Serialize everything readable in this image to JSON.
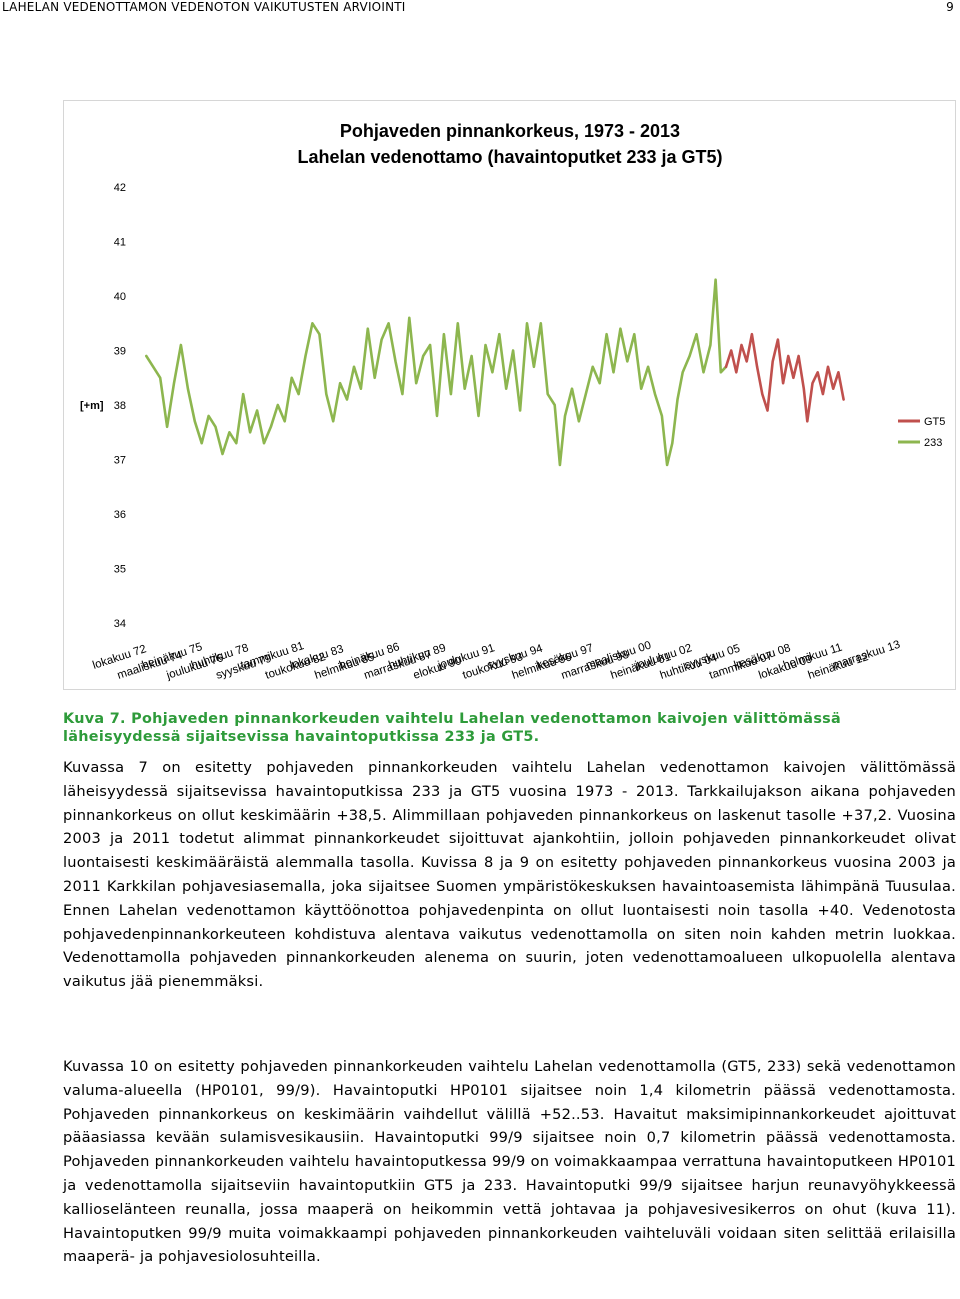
{
  "header": {
    "title": "LAHELAN VEDENOTTAMON VEDENOTON VAIKUTUSTEN ARVIOINTI",
    "page": "9"
  },
  "figure": {
    "caption": "Kuva 7. Pohjaveden pinnankorkeuden vaihtelu Lahelan vedenottamon kaivojen välittömässä läheisyydessä sijaitsevissa havaintoputkissa 233 ja GT5."
  },
  "chart_data": {
    "type": "line",
    "title": "Pohjaveden pinnankorkeus, 1973 - 2013",
    "subtitle": "Lahelan vedenottamo (havaintoputket 233 ja GT5)",
    "ylabel": "[+m]",
    "xlabel": "",
    "ylim": [
      34,
      42
    ],
    "yticks": [
      34,
      35,
      36,
      37,
      38,
      39,
      40,
      41,
      42
    ],
    "grid": false,
    "legend_position": "right",
    "categories": [
      "lokakuu 72",
      "maaliskuu 74",
      "heinäkuu 75",
      "joulukuu 76",
      "huhtikuu 78",
      "syyskuu 79",
      "tammikuu 81",
      "toukokuu 82",
      "lokakuu 83",
      "helmikuu 85",
      "heinäkuu 86",
      "marraskuu 87",
      "huhtikuu 89",
      "elokuu 90",
      "joulukuu 91",
      "toukokuu 93",
      "syyskuu 94",
      "helmikuu 96",
      "kesäkuu 97",
      "marraskuu 98",
      "maaliskuu 00",
      "heinäkuu 01",
      "joulukuu 02",
      "huhtikuu 04",
      "syyskuu 05",
      "tammikuu 07",
      "kesäkuu 08",
      "lokakuu 09",
      "helmikuu 11",
      "heinäkuu 12",
      "marraskuu 13"
    ],
    "series": [
      {
        "name": "233",
        "color": "#8db64f",
        "points": [
          [
            1973.0,
            38.9
          ],
          [
            1973.4,
            38.7
          ],
          [
            1973.8,
            38.5
          ],
          [
            1974.2,
            37.6
          ],
          [
            1974.6,
            38.4
          ],
          [
            1975.0,
            39.1
          ],
          [
            1975.4,
            38.3
          ],
          [
            1975.8,
            37.7
          ],
          [
            1976.2,
            37.3
          ],
          [
            1976.6,
            37.8
          ],
          [
            1977.0,
            37.6
          ],
          [
            1977.4,
            37.1
          ],
          [
            1977.8,
            37.5
          ],
          [
            1978.2,
            37.3
          ],
          [
            1978.6,
            38.2
          ],
          [
            1979.0,
            37.5
          ],
          [
            1979.4,
            37.9
          ],
          [
            1979.8,
            37.3
          ],
          [
            1980.2,
            37.6
          ],
          [
            1980.6,
            38.0
          ],
          [
            1981.0,
            37.7
          ],
          [
            1981.4,
            38.5
          ],
          [
            1981.8,
            38.2
          ],
          [
            1982.2,
            38.9
          ],
          [
            1982.6,
            39.5
          ],
          [
            1983.0,
            39.3
          ],
          [
            1983.4,
            38.2
          ],
          [
            1983.8,
            37.7
          ],
          [
            1984.2,
            38.4
          ],
          [
            1984.6,
            38.1
          ],
          [
            1985.0,
            38.7
          ],
          [
            1985.4,
            38.3
          ],
          [
            1985.8,
            39.4
          ],
          [
            1986.2,
            38.5
          ],
          [
            1986.6,
            39.2
          ],
          [
            1987.0,
            39.5
          ],
          [
            1987.4,
            38.8
          ],
          [
            1987.8,
            38.2
          ],
          [
            1988.2,
            39.6
          ],
          [
            1988.6,
            38.4
          ],
          [
            1989.0,
            38.9
          ],
          [
            1989.4,
            39.1
          ],
          [
            1989.8,
            37.8
          ],
          [
            1990.2,
            39.3
          ],
          [
            1990.6,
            38.2
          ],
          [
            1991.0,
            39.5
          ],
          [
            1991.4,
            38.3
          ],
          [
            1991.8,
            38.9
          ],
          [
            1992.2,
            37.8
          ],
          [
            1992.6,
            39.1
          ],
          [
            1993.0,
            38.6
          ],
          [
            1993.4,
            39.3
          ],
          [
            1993.8,
            38.3
          ],
          [
            1994.2,
            39.0
          ],
          [
            1994.6,
            37.9
          ],
          [
            1995.0,
            39.5
          ],
          [
            1995.4,
            38.7
          ],
          [
            1995.8,
            39.5
          ],
          [
            1996.2,
            38.2
          ],
          [
            1996.6,
            38.0
          ],
          [
            1996.9,
            36.9
          ],
          [
            1997.2,
            37.8
          ],
          [
            1997.6,
            38.3
          ],
          [
            1998.0,
            37.7
          ],
          [
            1998.4,
            38.2
          ],
          [
            1998.8,
            38.7
          ],
          [
            1999.2,
            38.4
          ],
          [
            1999.6,
            39.3
          ],
          [
            2000.0,
            38.6
          ],
          [
            2000.4,
            39.4
          ],
          [
            2000.8,
            38.8
          ],
          [
            2001.2,
            39.3
          ],
          [
            2001.6,
            38.3
          ],
          [
            2002.0,
            38.7
          ],
          [
            2002.4,
            38.2
          ],
          [
            2002.8,
            37.8
          ],
          [
            2003.1,
            36.9
          ],
          [
            2003.4,
            37.3
          ],
          [
            2003.7,
            38.1
          ],
          [
            2004.0,
            38.6
          ],
          [
            2004.4,
            38.9
          ],
          [
            2004.8,
            39.3
          ],
          [
            2005.2,
            38.6
          ],
          [
            2005.6,
            39.1
          ],
          [
            2005.9,
            40.3
          ],
          [
            2006.2,
            38.6
          ],
          [
            2006.5,
            38.7
          ]
        ]
      },
      {
        "name": "GT5",
        "color": "#c0504d",
        "points": [
          [
            2006.5,
            38.7
          ],
          [
            2006.8,
            39.0
          ],
          [
            2007.1,
            38.6
          ],
          [
            2007.4,
            39.1
          ],
          [
            2007.7,
            38.8
          ],
          [
            2008.0,
            39.3
          ],
          [
            2008.3,
            38.7
          ],
          [
            2008.6,
            38.2
          ],
          [
            2008.9,
            37.9
          ],
          [
            2009.2,
            38.8
          ],
          [
            2009.5,
            39.2
          ],
          [
            2009.8,
            38.4
          ],
          [
            2010.1,
            38.9
          ],
          [
            2010.4,
            38.5
          ],
          [
            2010.7,
            38.9
          ],
          [
            2011.0,
            38.3
          ],
          [
            2011.2,
            37.7
          ],
          [
            2011.5,
            38.4
          ],
          [
            2011.8,
            38.6
          ],
          [
            2012.1,
            38.2
          ],
          [
            2012.4,
            38.7
          ],
          [
            2012.7,
            38.3
          ],
          [
            2013.0,
            38.6
          ],
          [
            2013.3,
            38.1
          ]
        ]
      }
    ]
  },
  "paragraphs": {
    "p1": "Kuvassa 7 on esitetty pohjaveden pinnankorkeuden vaihtelu Lahelan vedenottamon kaivojen välittömässä läheisyydessä sijaitsevissa havaintoputkissa 233 ja GT5 vuosina 1973 - 2013. Tarkkailujakson aikana pohjaveden pinnankorkeus on ollut keskimäärin +38,5. Alimmillaan pohjaveden pinnankorkeus on laskenut tasolle +37,2. Vuosina 2003 ja 2011 todetut alimmat pinnankorkeudet sijoittuvat ajankohtiin, jolloin pohjaveden pinnankorkeudet olivat luontaisesti keskimääräistä alemmalla tasolla. Kuvissa 8 ja 9 on esitetty pohjaveden pinnankorkeus vuosina 2003 ja 2011 Karkkilan pohjavesiasemalla, joka sijaitsee Suomen ympäristökeskuksen havaintoasemista lähimpänä Tuusulaa. Ennen Lahelan vedenottamon käyttöönottoa pohjavedenpinta on ollut luontaisesti noin tasolla +40. Vedenotosta pohjavedenpinnankorkeuteen kohdistuva alentava vaikutus vedenottamolla on siten noin kahden metrin luokkaa. Vedenottamolla pohjaveden pinnankorkeuden alenema on suurin, joten vedenottamoalueen ulkopuolella alentava vaikutus jää pienemmäksi.",
    "p2": "Kuvassa 10 on esitetty pohjaveden pinnankorkeuden vaihtelu Lahelan vedenottamolla (GT5, 233) sekä vedenottamon valuma-alueella (HP0101, 99/9). Havaintoputki HP0101 sijaitsee noin 1,4 kilometrin päässä vedenottamosta. Pohjaveden pinnankorkeus on keskimäärin vaihdellut välillä +52..53. Havaitut maksimipinnankorkeudet ajoittuvat pääasiassa kevään sulamisvesikausiin. Havaintoputki 99/9 sijaitsee noin 0,7 kilometrin päässä vedenottamosta. Pohjaveden pinnankorkeuden vaihtelu havaintoputkessa 99/9 on voimakkaampaa verrattuna havaintoputkeen HP0101 ja vedenottamolla sijaitseviin havaintoputkiin GT5 ja 233. Havaintoputki 99/9 sijaitsee harjun reunavyöhykkeessä kallioselänteen reunalla, jossa maaperä on heikommin vettä johtavaa ja pohjavesivesikerros on ohut (kuva 11). Havaintoputken 99/9 muita voimakkaampi pohjaveden pinnankorkeuden vaihteluväli voidaan siten selittää erilaisilla maaperä- ja pohjavesiolosuhteilla."
  }
}
